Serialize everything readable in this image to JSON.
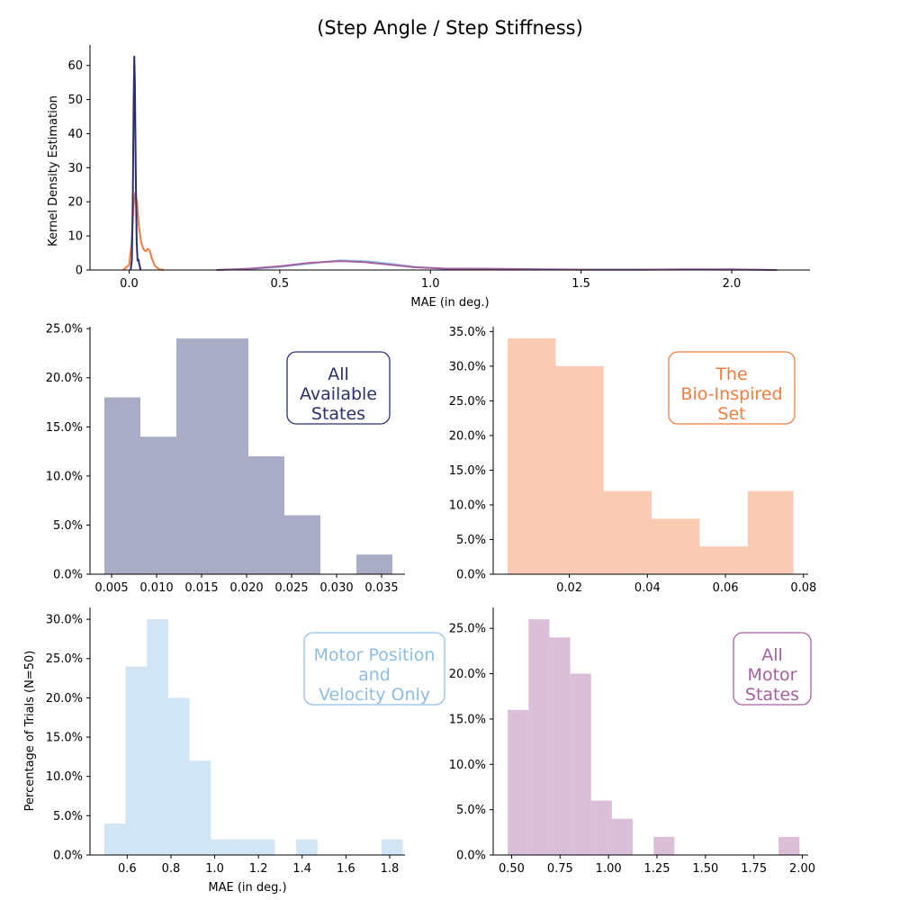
{
  "figure": {
    "title": "(Step Angle / Step Stiffness)"
  },
  "colors": {
    "all_available": "#2a2f6d",
    "bio_inspired": "#f37b3f",
    "motor_pos_vel": "#8dbde6",
    "all_motor": "#a5609f"
  },
  "chart_data": [
    {
      "id": "kde",
      "type": "line",
      "title": "(Step Angle / Step Stiffness)",
      "xlabel": "MAE (in deg.)",
      "ylabel": "Kernel Density Estimation",
      "xlim": [
        -0.13,
        2.26
      ],
      "ylim": [
        0,
        66
      ],
      "xticks": [
        0.0,
        0.5,
        1.0,
        1.5,
        2.0
      ],
      "xtick_labels": [
        "0.0",
        "0.5",
        "1.0",
        "1.5",
        "2.0"
      ],
      "yticks": [
        0,
        10,
        20,
        30,
        40,
        50,
        60
      ],
      "ytick_labels": [
        "0",
        "10",
        "20",
        "30",
        "40",
        "50",
        "60"
      ],
      "grid": false,
      "series": [
        {
          "color": "#8dbde6",
          "points": [
            [
              0.29,
              0
            ],
            [
              0.4,
              0.3
            ],
            [
              0.5,
              0.9
            ],
            [
              0.6,
              1.9
            ],
            [
              0.7,
              2.8
            ],
            [
              0.78,
              2.6
            ],
            [
              0.86,
              1.9
            ],
            [
              0.95,
              0.9
            ],
            [
              1.05,
              0.4
            ],
            [
              1.2,
              0.3
            ],
            [
              1.35,
              0.2
            ],
            [
              1.5,
              0.1
            ],
            [
              1.7,
              0.1
            ],
            [
              1.85,
              0.15
            ],
            [
              2.0,
              0.1
            ],
            [
              2.15,
              0
            ]
          ]
        },
        {
          "color": "#a5609f",
          "points": [
            [
              0.29,
              0
            ],
            [
              0.4,
              0.4
            ],
            [
              0.5,
              1.1
            ],
            [
              0.6,
              2.1
            ],
            [
              0.7,
              2.6
            ],
            [
              0.78,
              2.3
            ],
            [
              0.86,
              1.6
            ],
            [
              0.95,
              0.8
            ],
            [
              1.05,
              0.4
            ],
            [
              1.2,
              0.35
            ],
            [
              1.35,
              0.2
            ],
            [
              1.5,
              0.1
            ],
            [
              1.7,
              0.1
            ],
            [
              1.85,
              0.2
            ],
            [
              2.0,
              0.2
            ],
            [
              2.15,
              0
            ]
          ]
        },
        {
          "color": "#f37b3f",
          "points": [
            [
              -0.02,
              0
            ],
            [
              0.0,
              1.5
            ],
            [
              0.008,
              8
            ],
            [
              0.014,
              18
            ],
            [
              0.02,
              22.7
            ],
            [
              0.026,
              20
            ],
            [
              0.032,
              13
            ],
            [
              0.04,
              8
            ],
            [
              0.048,
              6
            ],
            [
              0.055,
              5.5
            ],
            [
              0.062,
              6.2
            ],
            [
              0.068,
              5.8
            ],
            [
              0.075,
              3.5
            ],
            [
              0.085,
              1.2
            ],
            [
              0.1,
              0.2
            ],
            [
              0.115,
              0
            ]
          ]
        },
        {
          "color": "#2a2f6d",
          "points": [
            [
              0.005,
              0
            ],
            [
              0.009,
              3
            ],
            [
              0.012,
              20
            ],
            [
              0.015,
              50
            ],
            [
              0.017,
              62.6
            ],
            [
              0.019,
              55
            ],
            [
              0.022,
              28
            ],
            [
              0.025,
              8
            ],
            [
              0.028,
              2.8
            ],
            [
              0.031,
              3
            ],
            [
              0.034,
              1.5
            ],
            [
              0.038,
              0
            ]
          ]
        }
      ]
    },
    {
      "id": "all-available-states",
      "type": "bar",
      "label": "All\nAvailable\nStates",
      "color": "#2a2f6d",
      "xlim": [
        0.0026,
        0.0376
      ],
      "ylim": [
        0,
        25.2
      ],
      "xticks": [
        0.005,
        0.01,
        0.015,
        0.02,
        0.025,
        0.03,
        0.035
      ],
      "xtick_labels": [
        "0.005",
        "0.010",
        "0.015",
        "0.020",
        "0.025",
        "0.030",
        "0.035"
      ],
      "yticks": [
        0,
        5,
        10,
        15,
        20,
        25
      ],
      "ytick_labels": [
        "0.0%",
        "5.0%",
        "10.0%",
        "15.0%",
        "20.0%",
        "25.0%"
      ],
      "bin_edges": [
        0.0042,
        0.0082,
        0.0122,
        0.0162,
        0.0202,
        0.0242,
        0.0282,
        0.0322,
        0.0362
      ],
      "values": [
        18,
        14,
        24,
        24,
        12,
        6,
        0,
        2
      ]
    },
    {
      "id": "bio-inspired-set",
      "type": "bar",
      "label": "The\nBio-Inspired\nSet",
      "color": "#f37b3f",
      "xlim": [
        0.0005,
        0.0812
      ],
      "ylim": [
        0,
        35.7
      ],
      "xticks": [
        0.02,
        0.04,
        0.06,
        0.08
      ],
      "xtick_labels": [
        "0.02",
        "0.04",
        "0.06",
        "0.08"
      ],
      "yticks": [
        0,
        5,
        10,
        15,
        20,
        25,
        30,
        35
      ],
      "ytick_labels": [
        "0.0%",
        "5.0%",
        "10.0%",
        "15.0%",
        "20.0%",
        "25.0%",
        "30.0%",
        "35.0%"
      ],
      "bin_edges": [
        0.0042,
        0.0165,
        0.0288,
        0.0411,
        0.0534,
        0.0657,
        0.0774
      ],
      "values": [
        34,
        30,
        12,
        8,
        4,
        12
      ]
    },
    {
      "id": "motor-position-velocity",
      "type": "bar",
      "label": "Motor Position\nand\nVelocity Only",
      "color": "#8dbde6",
      "xlabel": "MAE (in deg.)",
      "ylabel": "Percentage of Trials (N=50)",
      "xlim": [
        0.43,
        1.87
      ],
      "ylim": [
        0,
        31.5
      ],
      "xticks": [
        0.6,
        0.8,
        1.0,
        1.2,
        1.4,
        1.6,
        1.8
      ],
      "xtick_labels": [
        "0.6",
        "0.8",
        "1.0",
        "1.2",
        "1.4",
        "1.6",
        "1.8"
      ],
      "yticks": [
        0,
        5,
        10,
        15,
        20,
        25,
        30
      ],
      "ytick_labels": [
        "0.0%",
        "5.0%",
        "10.0%",
        "15.0%",
        "20.0%",
        "25.0%",
        "30.0%"
      ],
      "bin_edges": [
        0.495,
        0.5925,
        0.69,
        0.7875,
        0.885,
        0.9825,
        1.08,
        1.1775,
        1.275,
        1.3725,
        1.47,
        1.5675,
        1.665,
        1.7625,
        1.86
      ],
      "values": [
        4,
        24,
        30,
        20,
        12,
        2,
        2,
        2,
        0,
        2,
        0,
        0,
        0,
        2
      ]
    },
    {
      "id": "all-motor-states",
      "type": "bar",
      "label": "All\nMotor\nStates",
      "color": "#a5609f",
      "xlim": [
        0.405,
        2.03
      ],
      "ylim": [
        0,
        27.3
      ],
      "xticks": [
        0.5,
        0.75,
        1.0,
        1.25,
        1.5,
        1.75,
        2.0
      ],
      "xtick_labels": [
        "0.50",
        "0.75",
        "1.00",
        "1.25",
        "1.50",
        "1.75",
        "2.00"
      ],
      "yticks": [
        0,
        5,
        10,
        15,
        20,
        25
      ],
      "ytick_labels": [
        "0.0%",
        "5.0%",
        "10.0%",
        "15.0%",
        "20.0%",
        "25.0%"
      ],
      "bin_edges": [
        0.48,
        0.5875,
        0.695,
        0.8025,
        0.91,
        1.0175,
        1.125,
        1.2325,
        1.34,
        1.4475,
        1.555,
        1.6625,
        1.77,
        1.8775,
        1.985
      ],
      "values": [
        16,
        26,
        24,
        20,
        6,
        4,
        0,
        2,
        0,
        0,
        0,
        0,
        0,
        2
      ]
    }
  ]
}
